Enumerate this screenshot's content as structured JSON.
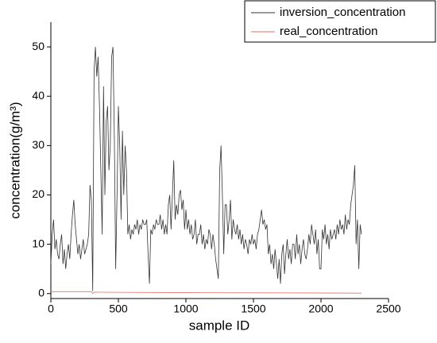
{
  "chart_data": {
    "type": "line",
    "xlabel": "sample ID",
    "ylabel": "concentration(g/m³)",
    "xlim": [
      0,
      2500
    ],
    "xticks": [
      0,
      500,
      1000,
      1500,
      2000,
      2500
    ],
    "ylim": [
      -1,
      55
    ],
    "yticks": [
      0,
      10,
      20,
      30,
      40,
      50
    ],
    "legend": "top-right",
    "series": [
      {
        "name": "inversion_concentration",
        "color": "#333333",
        "x": [
          0,
          10,
          20,
          30,
          40,
          50,
          60,
          70,
          80,
          90,
          100,
          110,
          120,
          130,
          140,
          150,
          160,
          170,
          180,
          190,
          200,
          210,
          220,
          230,
          240,
          250,
          260,
          270,
          280,
          290,
          300,
          310,
          320,
          330,
          340,
          350,
          360,
          370,
          380,
          390,
          400,
          410,
          420,
          430,
          440,
          450,
          460,
          470,
          480,
          490,
          500,
          510,
          520,
          530,
          540,
          550,
          560,
          570,
          580,
          590,
          600,
          610,
          620,
          630,
          640,
          650,
          660,
          670,
          680,
          690,
          700,
          710,
          720,
          730,
          740,
          750,
          760,
          770,
          780,
          790,
          800,
          810,
          820,
          830,
          840,
          850,
          860,
          870,
          880,
          890,
          900,
          910,
          920,
          930,
          940,
          950,
          960,
          970,
          980,
          990,
          1000,
          1010,
          1020,
          1030,
          1040,
          1050,
          1060,
          1070,
          1080,
          1090,
          1100,
          1110,
          1120,
          1130,
          1140,
          1150,
          1160,
          1170,
          1180,
          1190,
          1200,
          1210,
          1220,
          1230,
          1240,
          1250,
          1260,
          1270,
          1280,
          1290,
          1300,
          1310,
          1320,
          1330,
          1340,
          1350,
          1360,
          1370,
          1380,
          1390,
          1400,
          1410,
          1420,
          1430,
          1440,
          1450,
          1460,
          1470,
          1480,
          1490,
          1500,
          1510,
          1520,
          1530,
          1540,
          1550,
          1560,
          1570,
          1580,
          1590,
          1600,
          1610,
          1620,
          1630,
          1640,
          1650,
          1660,
          1670,
          1680,
          1690,
          1700,
          1710,
          1720,
          1730,
          1740,
          1750,
          1760,
          1770,
          1780,
          1790,
          1800,
          1810,
          1820,
          1830,
          1840,
          1850,
          1860,
          1870,
          1880,
          1890,
          1900,
          1910,
          1920,
          1930,
          1940,
          1950,
          1960,
          1970,
          1980,
          1990,
          2000,
          2010,
          2020,
          2030,
          2040,
          2050,
          2060,
          2070,
          2080,
          2090,
          2100,
          2110,
          2120,
          2130,
          2140,
          2150,
          2160,
          2170,
          2180,
          2190,
          2200,
          2210,
          2220,
          2230,
          2240,
          2250,
          2260,
          2270,
          2280,
          2290,
          2300
        ],
        "values": [
          6,
          12,
          15,
          9,
          11,
          8,
          7,
          10,
          12,
          6,
          9,
          5,
          8,
          10,
          7,
          12,
          16,
          19,
          14,
          11,
          8,
          10,
          7,
          9,
          11,
          8,
          9,
          10,
          12,
          22,
          19,
          0.5,
          45,
          50,
          44,
          48,
          38,
          25,
          12,
          42,
          20,
          35,
          38,
          25,
          30,
          48,
          50,
          32,
          5,
          20,
          38,
          30,
          15,
          33,
          20,
          30,
          25,
          12,
          14,
          11,
          13,
          12,
          14,
          13,
          15,
          12,
          14,
          13,
          15,
          14,
          14,
          15,
          8,
          2,
          13,
          12,
          14,
          13,
          15,
          14,
          14,
          16,
          13,
          15,
          12,
          14,
          12,
          18,
          20,
          13,
          20,
          27,
          15,
          18,
          16,
          20,
          21,
          17,
          19,
          13,
          17,
          13,
          15,
          12,
          14,
          11,
          12,
          15,
          10,
          12,
          12,
          14,
          10,
          12,
          9,
          11,
          10,
          13,
          12,
          9,
          12,
          10,
          7,
          5,
          3,
          25,
          30,
          20,
          8,
          18,
          18,
          12,
          15,
          19,
          11,
          15,
          13,
          12,
          14,
          11,
          13,
          10,
          12,
          9,
          11,
          10,
          8,
          11,
          10,
          12,
          10,
          11,
          9,
          12,
          13,
          15,
          17,
          14,
          15,
          13,
          14,
          8,
          10,
          6,
          8,
          5,
          9,
          6,
          3,
          7,
          2,
          8,
          10,
          4,
          8,
          11,
          7,
          9,
          6,
          10,
          10,
          7,
          12,
          8,
          10,
          6,
          9,
          11,
          8,
          7,
          9,
          12,
          10,
          14,
          12,
          10,
          13,
          8,
          11,
          5,
          5,
          13,
          11,
          14,
          10,
          12,
          9,
          13,
          11,
          12,
          13,
          11,
          14,
          12,
          15,
          13,
          14,
          12,
          16,
          13,
          15,
          14,
          18,
          20,
          22,
          26,
          10,
          15,
          5,
          14,
          12
        ]
      },
      {
        "name": "real_concentration",
        "color": "#e8706a",
        "x": [
          0,
          300,
          310,
          320,
          1000,
          2300
        ],
        "values": [
          0.4,
          0.4,
          0,
          0.3,
          0.2,
          0.1
        ]
      }
    ]
  }
}
